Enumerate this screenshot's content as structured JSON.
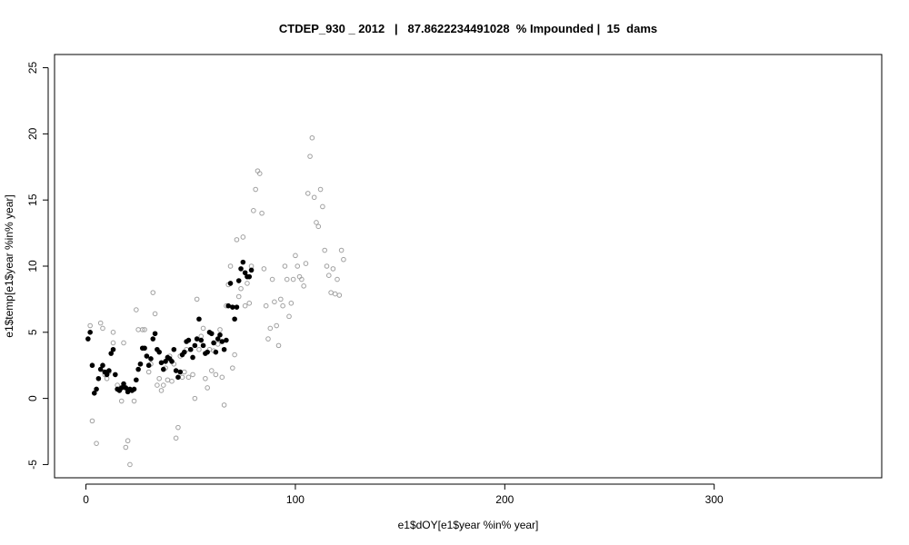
{
  "chart_data": {
    "type": "scatter",
    "title": "CTDEP_930 _ 2012   |   87.8622234491028  % Impounded |  15  dams",
    "xlabel": "e1$dOY[e1$year %in% year]",
    "ylabel": "e1$temp[e1$year %in% year]",
    "xlim": [
      -15,
      380
    ],
    "ylim": [
      -6,
      26
    ],
    "x_ticks": [
      0,
      100,
      200,
      300
    ],
    "y_ticks": [
      -5,
      0,
      5,
      10,
      15,
      20,
      25
    ],
    "grid": false,
    "colors": {
      "filled": "#000000",
      "open": "#a0a0a0"
    },
    "series": [
      {
        "style": "open",
        "points": [
          [
            2,
            5.5
          ],
          [
            3,
            -1.7
          ],
          [
            5,
            -3.4
          ],
          [
            7,
            5.7
          ],
          [
            8,
            5.3
          ],
          [
            9,
            1.8
          ],
          [
            10,
            1.5
          ],
          [
            11,
            2.0
          ],
          [
            13,
            4.2
          ],
          [
            13,
            5.0
          ],
          [
            15,
            1.0
          ],
          [
            17,
            -0.2
          ],
          [
            18,
            4.2
          ],
          [
            19,
            -3.7
          ],
          [
            20,
            -3.2
          ],
          [
            21,
            -5.0
          ],
          [
            23,
            -0.2
          ],
          [
            24,
            6.7
          ],
          [
            25,
            5.2
          ],
          [
            26,
            2.6
          ],
          [
            27,
            5.2
          ],
          [
            28,
            5.2
          ],
          [
            30,
            2.0
          ],
          [
            31,
            2.6
          ],
          [
            32,
            8.0
          ],
          [
            33,
            6.4
          ],
          [
            34,
            1.0
          ],
          [
            35,
            1.5
          ],
          [
            36,
            0.6
          ],
          [
            37,
            1.0
          ],
          [
            38,
            2.3
          ],
          [
            39,
            1.4
          ],
          [
            40,
            3.2
          ],
          [
            41,
            1.3
          ],
          [
            42,
            2.6
          ],
          [
            43,
            -3.0
          ],
          [
            44,
            -2.2
          ],
          [
            45,
            3.2
          ],
          [
            46,
            1.6
          ],
          [
            47,
            2.0
          ],
          [
            48,
            3.7
          ],
          [
            49,
            1.6
          ],
          [
            50,
            3.7
          ],
          [
            51,
            1.8
          ],
          [
            52,
            0.0
          ],
          [
            53,
            7.5
          ],
          [
            54,
            3.7
          ],
          [
            55,
            4.7
          ],
          [
            56,
            5.3
          ],
          [
            57,
            1.5
          ],
          [
            58,
            0.8
          ],
          [
            59,
            3.7
          ],
          [
            60,
            2.1
          ],
          [
            61,
            3.6
          ],
          [
            62,
            1.8
          ],
          [
            63,
            4.1
          ],
          [
            64,
            5.2
          ],
          [
            65,
            1.6
          ],
          [
            66,
            -0.5
          ],
          [
            67,
            7.0
          ],
          [
            68,
            8.6
          ],
          [
            69,
            10.0
          ],
          [
            70,
            2.3
          ],
          [
            71,
            3.3
          ],
          [
            72,
            12.0
          ],
          [
            73,
            7.7
          ],
          [
            74,
            8.3
          ],
          [
            75,
            12.2
          ],
          [
            76,
            7.0
          ],
          [
            77,
            8.7
          ],
          [
            78,
            7.2
          ],
          [
            79,
            10.0
          ],
          [
            80,
            14.2
          ],
          [
            81,
            15.8
          ],
          [
            82,
            17.2
          ],
          [
            83,
            17.0
          ],
          [
            84,
            14.0
          ],
          [
            85,
            9.8
          ],
          [
            86,
            7.0
          ],
          [
            87,
            4.5
          ],
          [
            88,
            5.3
          ],
          [
            89,
            9.0
          ],
          [
            90,
            7.3
          ],
          [
            91,
            5.5
          ],
          [
            92,
            4.0
          ],
          [
            93,
            7.5
          ],
          [
            94,
            7.0
          ],
          [
            95,
            10.0
          ],
          [
            96,
            9.0
          ],
          [
            97,
            6.2
          ],
          [
            98,
            7.2
          ],
          [
            99,
            9.0
          ],
          [
            100,
            10.8
          ],
          [
            101,
            10.0
          ],
          [
            102,
            9.2
          ],
          [
            103,
            9.0
          ],
          [
            104,
            8.5
          ],
          [
            105,
            10.2
          ],
          [
            106,
            15.5
          ],
          [
            107,
            18.3
          ],
          [
            108,
            19.7
          ],
          [
            109,
            15.2
          ],
          [
            110,
            13.3
          ],
          [
            111,
            13.0
          ],
          [
            112,
            15.8
          ],
          [
            113,
            14.5
          ],
          [
            114,
            11.2
          ],
          [
            115,
            10.0
          ],
          [
            116,
            9.3
          ],
          [
            117,
            8.0
          ],
          [
            118,
            9.8
          ],
          [
            119,
            7.9
          ],
          [
            120,
            9.0
          ],
          [
            121,
            7.8
          ],
          [
            122,
            11.2
          ],
          [
            123,
            10.5
          ]
        ]
      },
      {
        "style": "filled",
        "points": [
          [
            1,
            4.5
          ],
          [
            2,
            5.0
          ],
          [
            3,
            2.5
          ],
          [
            4,
            0.4
          ],
          [
            5,
            0.7
          ],
          [
            6,
            1.5
          ],
          [
            7,
            2.2
          ],
          [
            8,
            2.5
          ],
          [
            9,
            2.0
          ],
          [
            10,
            1.8
          ],
          [
            11,
            2.1
          ],
          [
            12,
            3.4
          ],
          [
            13,
            3.7
          ],
          [
            14,
            1.8
          ],
          [
            15,
            0.7
          ],
          [
            16,
            0.6
          ],
          [
            17,
            0.8
          ],
          [
            18,
            1.1
          ],
          [
            19,
            0.8
          ],
          [
            20,
            0.5
          ],
          [
            21,
            0.7
          ],
          [
            22,
            0.6
          ],
          [
            23,
            0.7
          ],
          [
            24,
            1.4
          ],
          [
            25,
            2.2
          ],
          [
            26,
            2.6
          ],
          [
            27,
            3.8
          ],
          [
            28,
            3.8
          ],
          [
            29,
            3.2
          ],
          [
            30,
            2.5
          ],
          [
            31,
            3.0
          ],
          [
            32,
            4.5
          ],
          [
            33,
            4.9
          ],
          [
            34,
            3.7
          ],
          [
            35,
            3.5
          ],
          [
            36,
            2.7
          ],
          [
            37,
            2.2
          ],
          [
            38,
            2.8
          ],
          [
            39,
            3.1
          ],
          [
            40,
            3.0
          ],
          [
            41,
            2.8
          ],
          [
            42,
            3.7
          ],
          [
            43,
            2.1
          ],
          [
            44,
            1.6
          ],
          [
            45,
            2.0
          ],
          [
            46,
            3.3
          ],
          [
            47,
            3.5
          ],
          [
            48,
            4.3
          ],
          [
            49,
            4.4
          ],
          [
            50,
            3.7
          ],
          [
            51,
            3.1
          ],
          [
            52,
            4.0
          ],
          [
            53,
            4.5
          ],
          [
            54,
            6.0
          ],
          [
            55,
            4.4
          ],
          [
            56,
            4.0
          ],
          [
            57,
            3.4
          ],
          [
            58,
            3.5
          ],
          [
            59,
            5.0
          ],
          [
            60,
            4.9
          ],
          [
            61,
            4.2
          ],
          [
            62,
            3.5
          ],
          [
            63,
            4.5
          ],
          [
            64,
            4.8
          ],
          [
            65,
            4.3
          ],
          [
            66,
            3.7
          ],
          [
            67,
            4.4
          ],
          [
            68,
            7.0
          ],
          [
            69,
            8.7
          ],
          [
            70,
            6.9
          ],
          [
            71,
            6.0
          ],
          [
            72,
            6.9
          ],
          [
            73,
            8.9
          ],
          [
            74,
            9.8
          ],
          [
            75,
            10.3
          ],
          [
            76,
            9.5
          ],
          [
            77,
            9.2
          ],
          [
            78,
            9.2
          ],
          [
            79,
            9.7
          ]
        ]
      }
    ]
  }
}
